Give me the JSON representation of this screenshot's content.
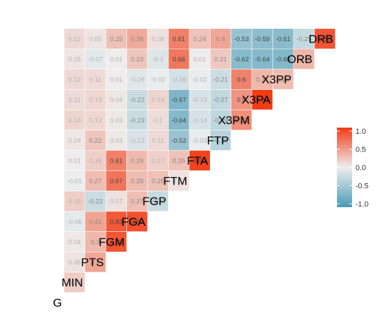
{
  "chart_data": {
    "type": "heatmap",
    "title": "",
    "variables": [
      "G",
      "MIN",
      "PTS",
      "FGM",
      "FGA",
      "FGP",
      "FTM",
      "FTA",
      "FTP",
      "X3PM",
      "X3PA",
      "X3PP",
      "ORB",
      "DRB"
    ],
    "lower_triangle": [
      [],
      [
        0.19
      ],
      [
        0.06,
        0.4
      ],
      [
        0.04,
        0.3,
        0.85
      ],
      [
        -0.06,
        0.41,
        0.83,
        0.87
      ],
      [
        0.18,
        -0.22,
        0.07,
        0.27,
        -0.23
      ],
      [
        -0.01,
        0.27,
        0.67,
        0.28,
        0.25,
        0.07
      ],
      [
        0.01,
        0.18,
        0.61,
        0.29,
        0.17,
        0.25,
        0.95
      ],
      [
        0.04,
        0.22,
        0.03,
        -0.13,
        0.11,
        -0.52,
        -0.03,
        -0.33
      ],
      [
        0.14,
        0.13,
        0.03,
        -0.23,
        0.1,
        -0.64,
        -0.14,
        -0.29,
        0.53
      ],
      [
        0.11,
        0.13,
        0.04,
        -0.22,
        0.14,
        -0.67,
        -0.13,
        -0.27,
        0.5,
        0.99
      ],
      [
        0.12,
        0.11,
        0.01,
        -0.09,
        -0.02,
        -0.16,
        -0.02,
        -0.21,
        0.6,
        0.31,
        0.28
      ],
      [
        0.05,
        -0.07,
        0.01,
        0.23,
        -0.1,
        0.66,
        0.01,
        0.21,
        -0.62,
        -0.64,
        -0.65,
        0.31
      ],
      [
        0.12,
        0.05,
        0.25,
        0.38,
        0.08,
        0.61,
        0.24,
        0.4,
        -0.53,
        -0.59,
        -0.61,
        -0.25,
        0.85
      ]
    ],
    "color_scale": {
      "low": "#4a9bb5",
      "mid": "#eeeeee",
      "high": "#f23a13",
      "limits": [
        -1,
        1
      ]
    },
    "legend": {
      "position": "right",
      "ticks": [
        "1.0",
        "0.5",
        "0.0",
        "-0.5",
        "-1.0"
      ]
    }
  }
}
